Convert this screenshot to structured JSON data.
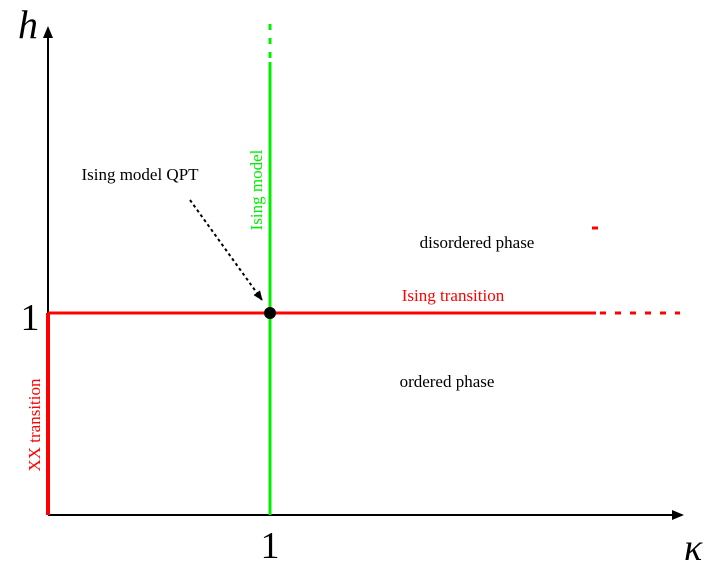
{
  "axes": {
    "y_label": "h",
    "x_label": "κ",
    "y_tick": "1",
    "x_tick": "1"
  },
  "lines": {
    "ising_model": "Ising model",
    "ising_transition": "Ising transition",
    "xx_transition": "XX transition"
  },
  "regions": {
    "disordered": "disordered phase",
    "ordered": "ordered phase"
  },
  "annotation": "Ising model QPT"
}
